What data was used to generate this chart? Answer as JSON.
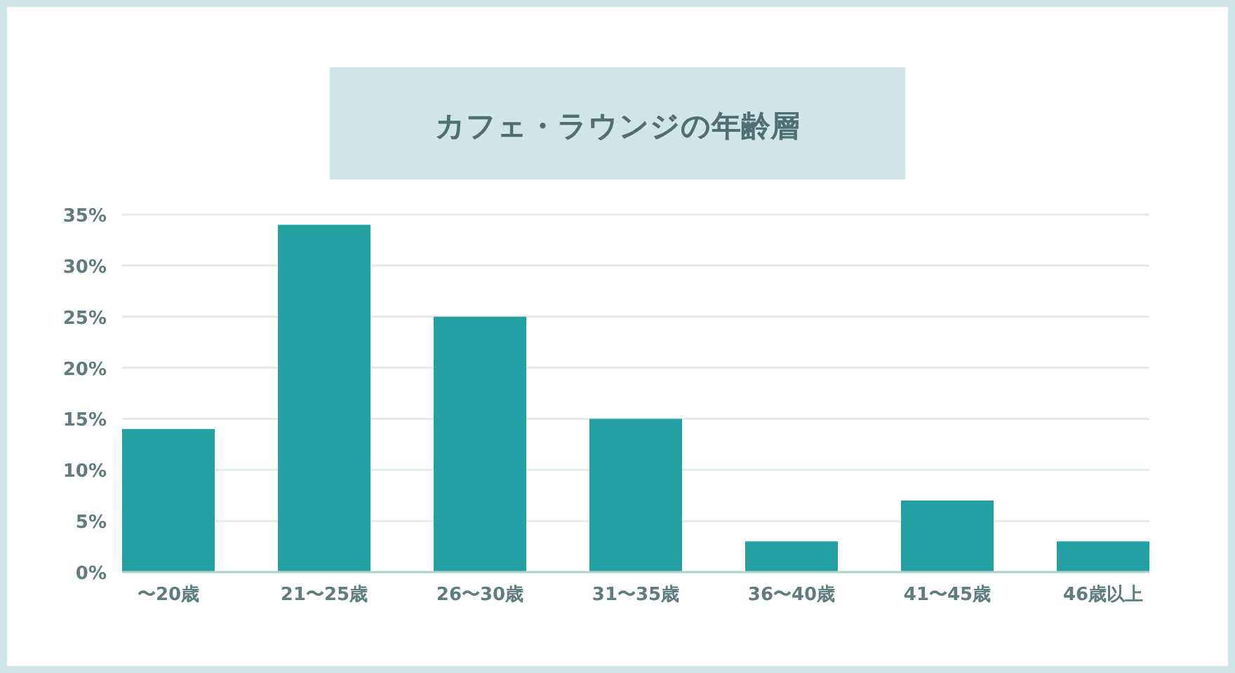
{
  "chart_data": {
    "type": "bar",
    "title": "カフェ・ラウンジの年齢層",
    "categories": [
      "〜20歳",
      "21〜25歳",
      "26〜30歳",
      "31〜35歳",
      "36〜40歳",
      "41〜45歳",
      "46歳以上"
    ],
    "values": [
      14,
      34,
      25,
      15,
      3,
      7,
      3
    ],
    "color": "#24a0a2",
    "ylim": [
      0,
      35
    ],
    "yticks": [
      {
        "value": 0,
        "label": "0%"
      },
      {
        "value": 5,
        "label": "5%"
      },
      {
        "value": 10,
        "label": "10%"
      },
      {
        "value": 15,
        "label": "15%"
      },
      {
        "value": 20,
        "label": "20%"
      },
      {
        "value": 25,
        "label": "25%"
      },
      {
        "value": 30,
        "label": "30%"
      },
      {
        "value": 35,
        "label": "35%"
      }
    ],
    "grid": "y"
  }
}
